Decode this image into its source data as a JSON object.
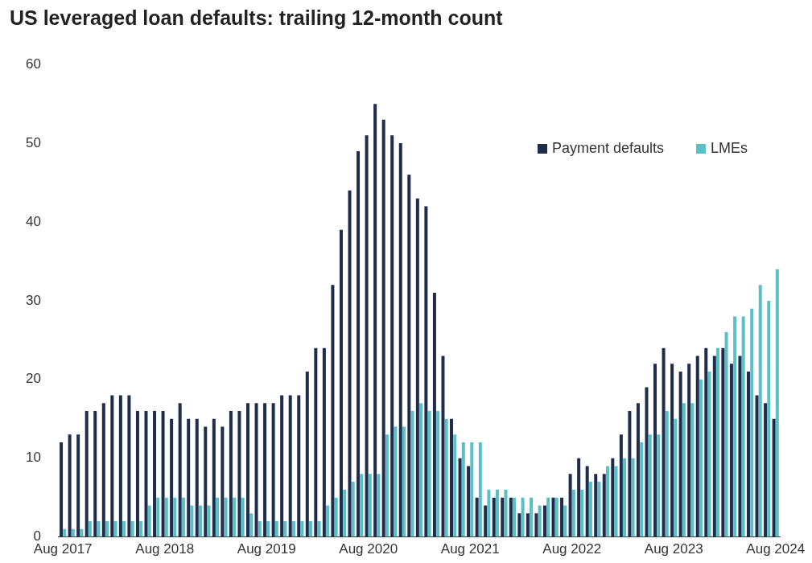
{
  "chart_data": {
    "type": "bar",
    "title": "US leveraged loan defaults: trailing 12-month count",
    "categories": [
      "Aug 2017",
      null,
      null,
      null,
      null,
      null,
      null,
      null,
      null,
      null,
      null,
      null,
      "Aug 2018",
      null,
      null,
      null,
      null,
      null,
      null,
      null,
      null,
      null,
      null,
      null,
      "Aug 2019",
      null,
      null,
      null,
      null,
      null,
      null,
      null,
      null,
      null,
      null,
      null,
      "Aug 2020",
      null,
      null,
      null,
      null,
      null,
      null,
      null,
      null,
      null,
      null,
      null,
      "Aug 2021",
      null,
      null,
      null,
      null,
      null,
      null,
      null,
      null,
      null,
      null,
      null,
      "Aug 2022",
      null,
      null,
      null,
      null,
      null,
      null,
      null,
      null,
      null,
      null,
      null,
      "Aug 2023",
      null,
      null,
      null,
      null,
      null,
      null,
      null,
      null,
      null,
      null,
      null,
      "Aug 2024"
    ],
    "series": [
      {
        "name": "Payment defaults",
        "color": "#1f2d4d",
        "values": [
          12,
          13,
          13,
          16,
          16,
          17,
          18,
          18,
          18,
          16,
          16,
          16,
          16,
          15,
          17,
          15,
          15,
          14,
          15,
          14,
          16,
          16,
          17,
          17,
          17,
          17,
          18,
          18,
          18,
          21,
          24,
          24,
          32,
          39,
          44,
          49,
          51,
          55,
          53,
          51,
          50,
          46,
          43,
          42,
          31,
          23,
          15,
          10,
          9,
          5,
          4,
          5,
          5,
          5,
          3,
          3,
          3,
          4,
          5,
          5,
          8,
          10,
          9,
          8,
          8,
          10,
          13,
          16,
          17,
          19,
          22,
          24,
          22,
          21,
          22,
          23,
          24,
          23,
          24,
          22,
          23,
          21,
          18,
          17,
          15
        ]
      },
      {
        "name": "LMEs",
        "color": "#5bbfc6",
        "values": [
          1,
          1,
          1,
          2,
          2,
          2,
          2,
          2,
          2,
          2,
          4,
          5,
          5,
          5,
          5,
          4,
          4,
          4,
          5,
          5,
          5,
          5,
          3,
          2,
          2,
          2,
          2,
          2,
          2,
          2,
          2,
          4,
          5,
          6,
          7,
          8,
          8,
          8,
          13,
          14,
          14,
          16,
          17,
          16,
          16,
          15,
          13,
          12,
          12,
          12,
          6,
          6,
          6,
          5,
          5,
          5,
          4,
          5,
          5,
          4,
          6,
          6,
          7,
          7,
          9,
          9,
          10,
          10,
          12,
          13,
          13,
          16,
          15,
          17,
          17,
          20,
          21,
          24,
          26,
          28,
          28,
          29,
          32,
          30,
          34
        ]
      }
    ],
    "ylim": [
      0,
      60
    ],
    "yticks": [
      0,
      10,
      20,
      30,
      40,
      50,
      60
    ],
    "grid": false,
    "legend": "top right"
  }
}
